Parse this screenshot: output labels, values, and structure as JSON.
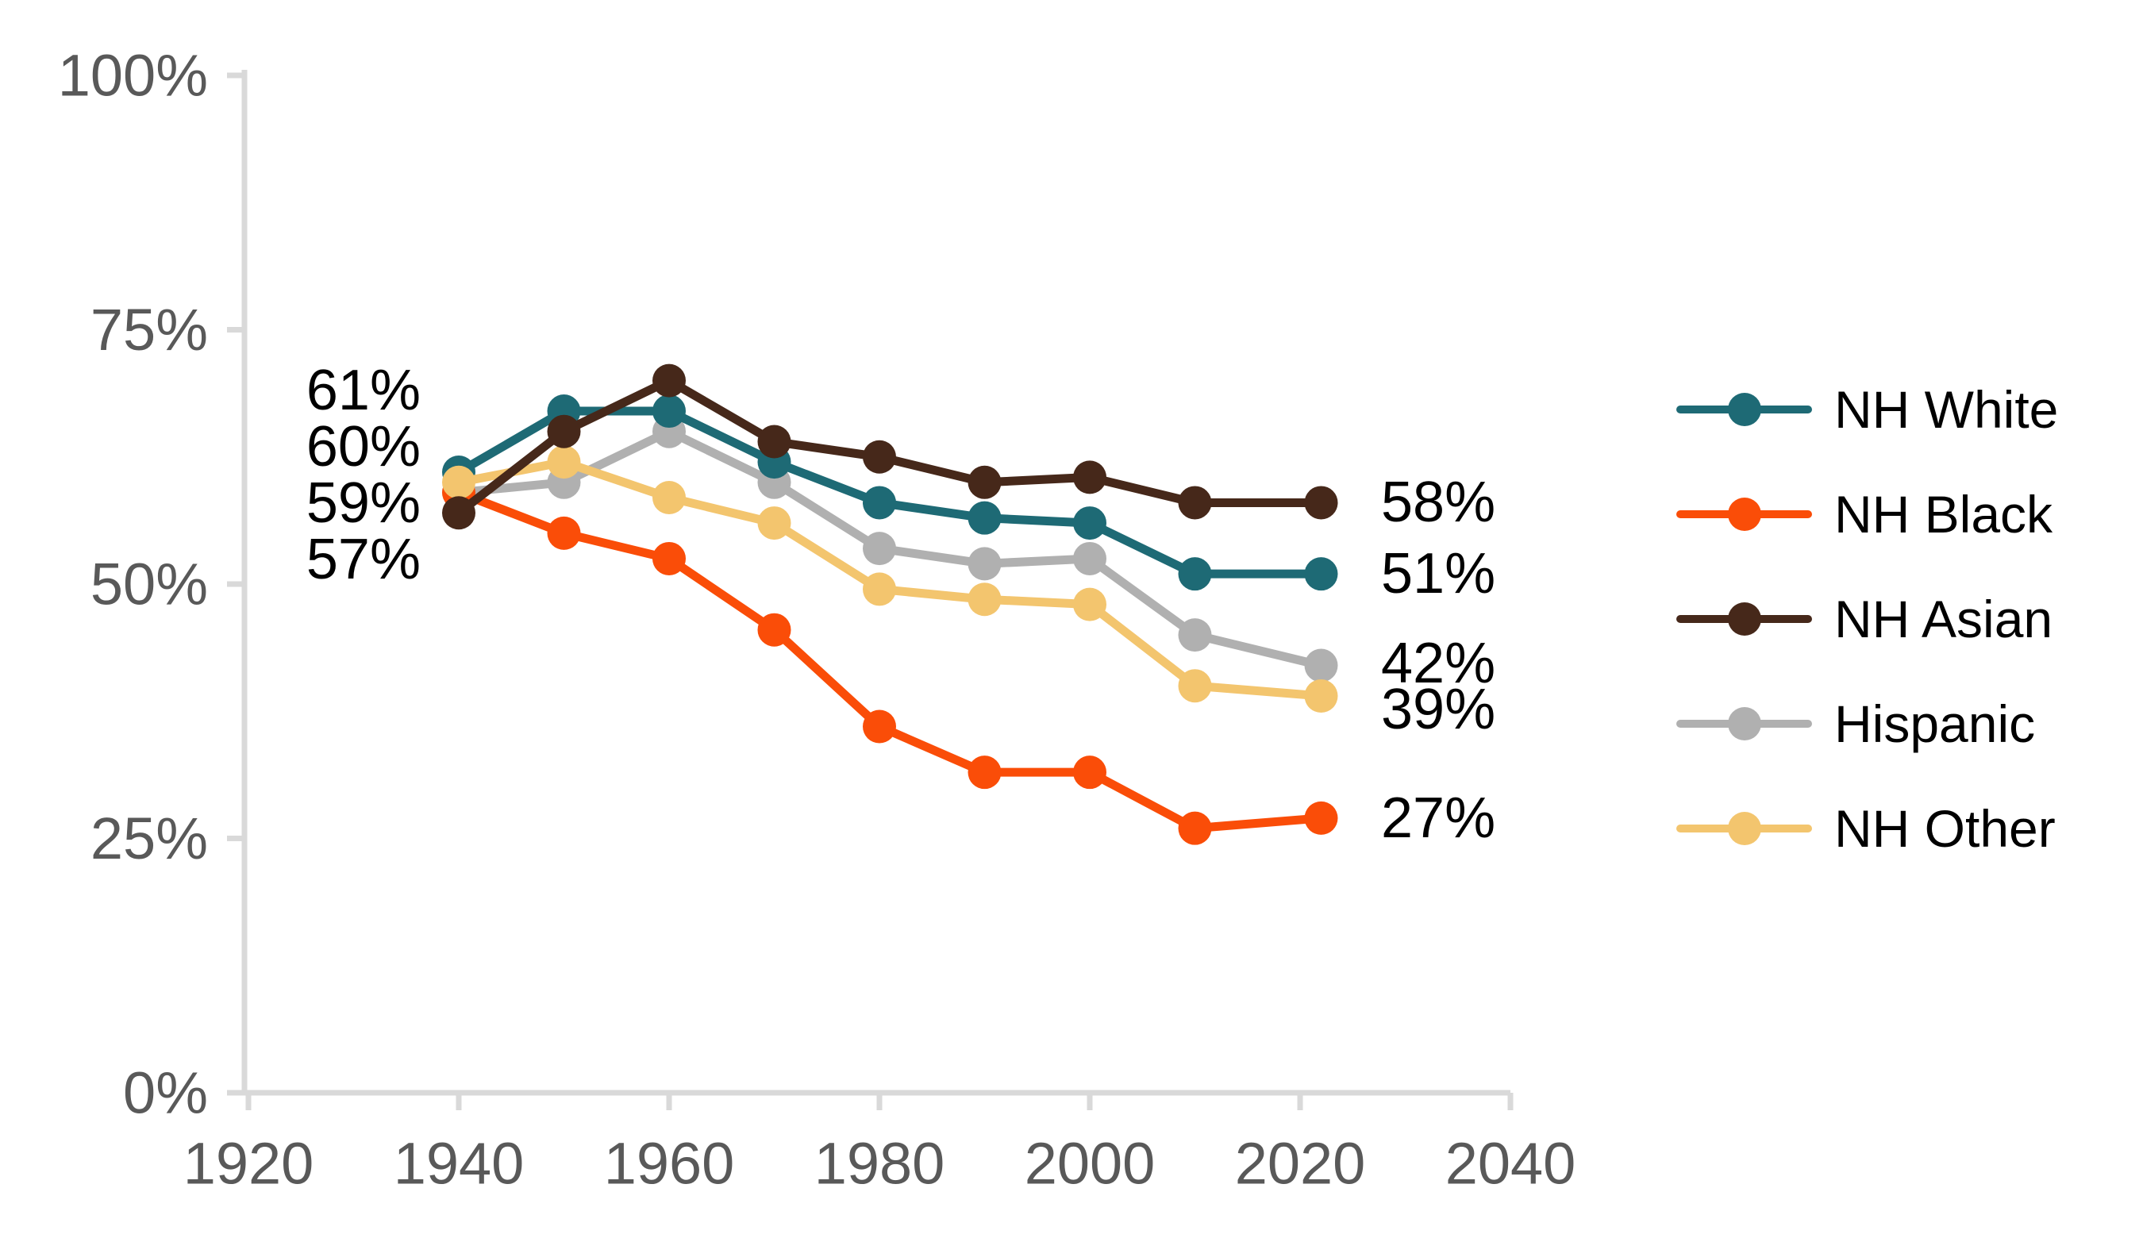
{
  "chart_data": {
    "type": "line",
    "x": [
      1940,
      1950,
      1960,
      1970,
      1980,
      1990,
      2000,
      2010,
      2022
    ],
    "series": [
      {
        "name": "NH White",
        "color": "#1E6A75",
        "values": [
          61,
          67,
          67,
          62,
          58,
          56.5,
          56,
          51,
          51
        ],
        "first_label": "61%",
        "last_label": "51%"
      },
      {
        "name": "NH Black",
        "color": "#FA4D08",
        "values": [
          59,
          55,
          52.5,
          45.5,
          36,
          31.5,
          31.5,
          26,
          27
        ],
        "first_label": "59%",
        "last_label": "27%"
      },
      {
        "name": "NH Asian",
        "color": "#46281A",
        "values": [
          57,
          65,
          70,
          64,
          62.5,
          60,
          60.5,
          58,
          58
        ],
        "first_label": "57%",
        "last_label": "58%"
      },
      {
        "name": "Hispanic",
        "color": "#B0B0B0",
        "values": [
          59,
          60,
          65,
          60,
          53.5,
          52,
          52.5,
          45,
          42
        ],
        "first_label": "59%",
        "last_label": "42%"
      },
      {
        "name": "NH Other",
        "color": "#F3C56E",
        "values": [
          60,
          62,
          58.5,
          56,
          49.5,
          48.5,
          48,
          40,
          39
        ],
        "first_label": "60%",
        "last_label": "39%"
      }
    ],
    "left_value_labels": [
      "61%",
      "60%",
      "59%",
      "57%"
    ],
    "right_value_labels": [
      "58%",
      "51%",
      "42%",
      "39%",
      "27%"
    ],
    "x_tick_labels": [
      "1920",
      "1940",
      "1960",
      "1980",
      "2000",
      "2020",
      "2040"
    ],
    "y_tick_labels": [
      "0%",
      "25%",
      "50%",
      "75%",
      "100%"
    ],
    "xlim": [
      1920,
      2040
    ],
    "ylim": [
      0,
      100
    ],
    "grid": false,
    "legend_position": "right-center",
    "colors": {
      "axis": "#D9D9D9",
      "tick_text": "#595959",
      "value_label_text": "#000000",
      "background": "#FFFFFF"
    }
  }
}
